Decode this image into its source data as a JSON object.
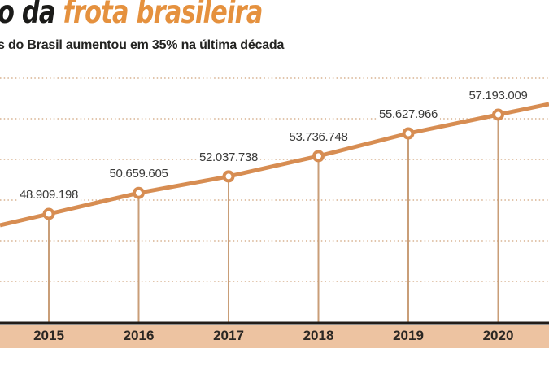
{
  "title": {
    "visible_prefix": "o da ",
    "highlight": "frota brasileira"
  },
  "subtitle": "s do Brasil aumentou em 35% na última década",
  "colors": {
    "background": "#ffffff",
    "title_text": "#1b1b19",
    "title_highlight": "#e5913e",
    "subtitle_text": "#232321",
    "line": "#d78d52",
    "marker_ring": "#d78d52",
    "marker_fill": "#ffffff",
    "stem": "#c99e78",
    "gridline": "#d8b290",
    "axis": "#211c18",
    "band": "#edc3a1",
    "year_label": "#2b2723",
    "value_label": "#3b3b3a"
  },
  "chart_data": {
    "type": "line",
    "x": [
      2015,
      2016,
      2017,
      2018,
      2019,
      2020
    ],
    "values": [
      48909198,
      50659605,
      52037738,
      53736748,
      55627966,
      57193009
    ],
    "point_labels": [
      "48.909.198",
      "50.659.605",
      "52.037.738",
      "53.736.748",
      "55.627.966",
      "57.193.009"
    ],
    "x_tick_labels": [
      "2015",
      "2016",
      "2017",
      "2018",
      "2019",
      "2020"
    ],
    "y_tick_labels": [],
    "title": "o da frota brasileira",
    "xlabel": "",
    "ylabel": "",
    "grid": "horizontal-dotted",
    "legend": "none",
    "layout_hints": "single orange series, white-center round markers, thin stems to x-axis, line extends past both image edges, y-axis unlabeled"
  }
}
